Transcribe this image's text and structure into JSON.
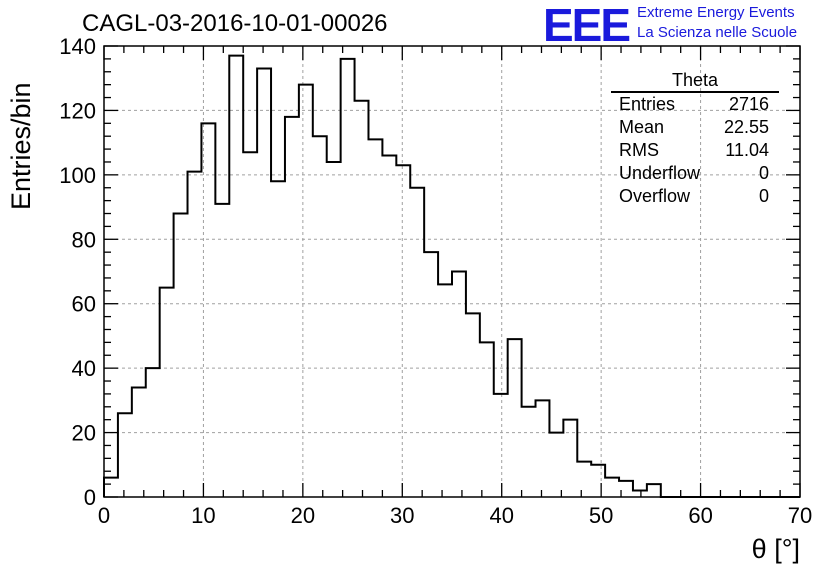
{
  "title": "CAGL-03-2016-10-01-00026",
  "logo": {
    "mark": "EEE",
    "line1": "Extreme Energy Events",
    "line2": "La Scienza nelle Scuole",
    "color": "#1a1adc"
  },
  "stats": {
    "name": "Theta",
    "rows": [
      {
        "label": "Entries",
        "value": "2716"
      },
      {
        "label": "Mean",
        "value": "22.55"
      },
      {
        "label": "RMS",
        "value": "11.04"
      },
      {
        "label": "Underflow",
        "value": "0"
      },
      {
        "label": "Overflow",
        "value": "0"
      }
    ]
  },
  "chart_data": {
    "type": "bar",
    "style": "step-histogram",
    "xlabel": "θ [°]",
    "ylabel": "Entries/bin",
    "xlim": [
      0,
      70
    ],
    "ylim": [
      0,
      140
    ],
    "xticks": [
      0,
      10,
      20,
      30,
      40,
      50,
      60,
      70
    ],
    "yticks": [
      0,
      20,
      40,
      60,
      80,
      100,
      120,
      140
    ],
    "grid": true,
    "bin_width": 1.4,
    "bin_edges_start": 0,
    "values": [
      6,
      26,
      34,
      40,
      65,
      88,
      101,
      116,
      91,
      137,
      107,
      133,
      98,
      118,
      128,
      112,
      104,
      136,
      123,
      111,
      106,
      103,
      96,
      76,
      66,
      70,
      57,
      48,
      32,
      49,
      28,
      30,
      20,
      24,
      11,
      10,
      6,
      5,
      2,
      4,
      0,
      0,
      0,
      0,
      0,
      0,
      0,
      0,
      0,
      0
    ]
  }
}
